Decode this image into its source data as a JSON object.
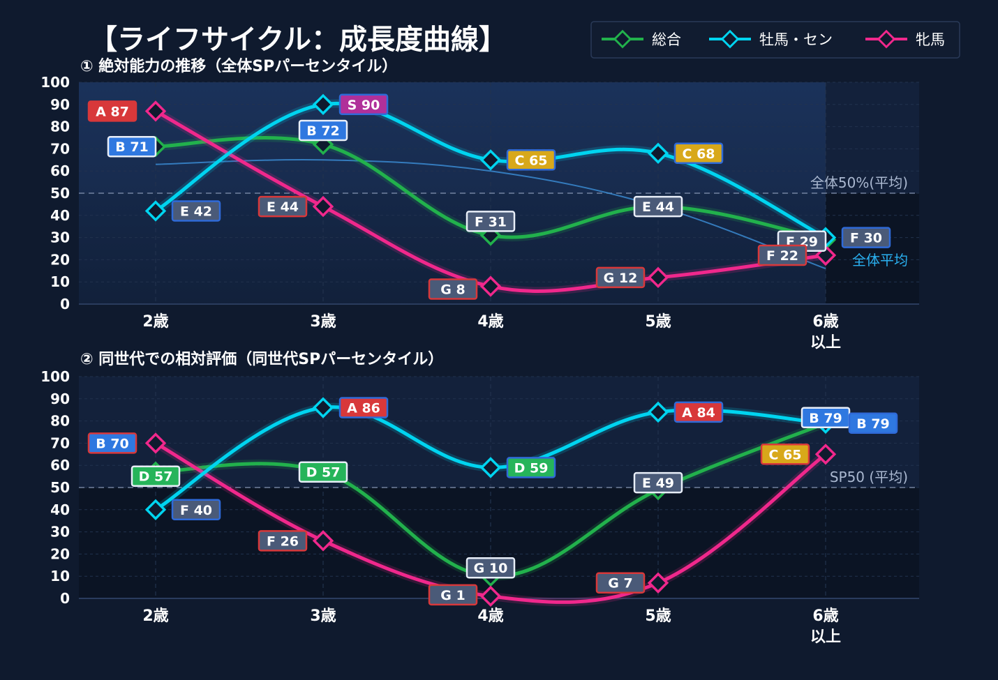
{
  "title": "【ライフサイクル：成長度曲線】",
  "legend": [
    {
      "key": "total",
      "label": "総合",
      "color": "#22b14c"
    },
    {
      "key": "colt",
      "label": "牡馬・セン",
      "color": "#00d4f0"
    },
    {
      "key": "filly",
      "label": "牝馬",
      "color": "#f0288c"
    }
  ],
  "chart_data": [
    {
      "type": "line",
      "title": "① 絶対能力の推移（全体SPパーセンタイル）",
      "categories": [
        [
          "2歳"
        ],
        [
          "3歳"
        ],
        [
          "4歳"
        ],
        [
          "5歳"
        ],
        [
          "6歳",
          "以上"
        ]
      ],
      "ylim": [
        0,
        100
      ],
      "yticks": [
        0,
        10,
        20,
        30,
        40,
        50,
        60,
        70,
        80,
        90,
        100
      ],
      "series": [
        {
          "key": "total",
          "values": [
            71,
            72,
            31,
            44,
            29
          ],
          "grades": [
            "B",
            "B",
            "F",
            "E",
            "F"
          ]
        },
        {
          "key": "colt",
          "values": [
            42,
            90,
            65,
            68,
            30
          ],
          "grades": [
            "E",
            "S",
            "C",
            "C",
            "F"
          ]
        },
        {
          "key": "filly",
          "values": [
            87,
            44,
            8,
            12,
            22
          ],
          "grades": [
            "A",
            "E",
            "G",
            "G",
            "F"
          ]
        }
      ],
      "ref_line": {
        "value": 50,
        "label": "全体50%(平均)"
      },
      "average_curve": {
        "values": [
          63,
          65,
          60,
          44,
          16
        ],
        "label": "全体平均"
      },
      "highlight_range": [
        0,
        3
      ]
    },
    {
      "type": "line",
      "title": "② 同世代での相対評価（同世代SPパーセンタイル）",
      "categories": [
        [
          "2歳"
        ],
        [
          "3歳"
        ],
        [
          "4歳"
        ],
        [
          "5歳"
        ],
        [
          "6歳",
          "以上"
        ]
      ],
      "ylim": [
        0,
        100
      ],
      "yticks": [
        0,
        10,
        20,
        30,
        40,
        50,
        60,
        70,
        80,
        90,
        100
      ],
      "series": [
        {
          "key": "total",
          "values": [
            57,
            57,
            10,
            49,
            79
          ],
          "grades": [
            "D",
            "D",
            "G",
            "E",
            "B"
          ]
        },
        {
          "key": "colt",
          "values": [
            40,
            86,
            59,
            84,
            79
          ],
          "grades": [
            "F",
            "A",
            "D",
            "A",
            "B"
          ]
        },
        {
          "key": "filly",
          "values": [
            70,
            26,
            1,
            7,
            65
          ],
          "grades": [
            "B",
            "F",
            "G",
            "G",
            "C"
          ]
        }
      ],
      "ref_line": {
        "value": 50,
        "label": "SP50 (平均)"
      }
    }
  ],
  "grade_colors": {
    "S": "#b0309a",
    "A": "#d8383a",
    "B": "#2f78e0",
    "C": "#d8a81a",
    "D": "#26b45a",
    "E": "#4a5a78",
    "F": "#4a5a78",
    "G": "#4a5a78"
  }
}
